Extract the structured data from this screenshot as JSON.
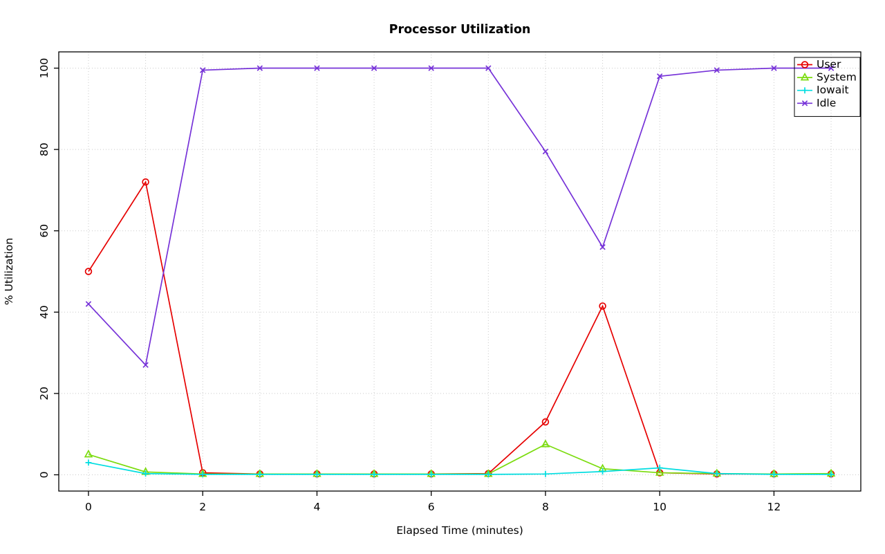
{
  "chart_data": {
    "type": "line",
    "title": "Processor Utilization",
    "xlabel": "Elapsed Time (minutes)",
    "ylabel": "% Utilization",
    "x": [
      0,
      1,
      2,
      3,
      4,
      5,
      6,
      7,
      8,
      9,
      10,
      11,
      12,
      13
    ],
    "series": [
      {
        "name": "User",
        "color": "#e60000",
        "marker": "circle",
        "values": [
          50,
          72,
          0.5,
          0.2,
          0.2,
          0.2,
          0.2,
          0.3,
          13,
          41.5,
          0.5,
          0.2,
          0.2,
          0.2
        ]
      },
      {
        "name": "System",
        "color": "#7bdc0e",
        "marker": "triangle",
        "values": [
          5,
          0.7,
          0.2,
          0.2,
          0.2,
          0.2,
          0.2,
          0.2,
          7.5,
          1.5,
          0.5,
          0.3,
          0.2,
          0.3
        ]
      },
      {
        "name": "Iowait",
        "color": "#00dde0",
        "marker": "plus",
        "values": [
          3,
          0.3,
          0.1,
          0.1,
          0.1,
          0.1,
          0.1,
          0.1,
          0.2,
          0.8,
          1.7,
          0.3,
          0.1,
          0.1
        ]
      },
      {
        "name": "Idle",
        "color": "#7632d8",
        "marker": "x",
        "values": [
          42,
          27,
          99.5,
          100,
          100,
          100,
          100,
          100,
          79.5,
          56,
          98,
          99.5,
          100,
          100
        ]
      }
    ],
    "xticks": [
      0,
      2,
      4,
      6,
      8,
      10,
      12
    ],
    "yticks": [
      0,
      20,
      40,
      60,
      80,
      100
    ],
    "xlim": [
      -0.52,
      13.52
    ],
    "ylim": [
      -4,
      104
    ],
    "grid": {
      "x": [
        0,
        1,
        2,
        3,
        4,
        5,
        6,
        7,
        8,
        9,
        10,
        11,
        12,
        13
      ],
      "y": [
        0,
        20,
        40,
        60,
        80,
        100
      ],
      "color": "#c9c9c9",
      "style": "dotted"
    },
    "legend": {
      "position": "top-right",
      "entries": [
        "User",
        "System",
        "Iowait",
        "Idle"
      ]
    }
  }
}
